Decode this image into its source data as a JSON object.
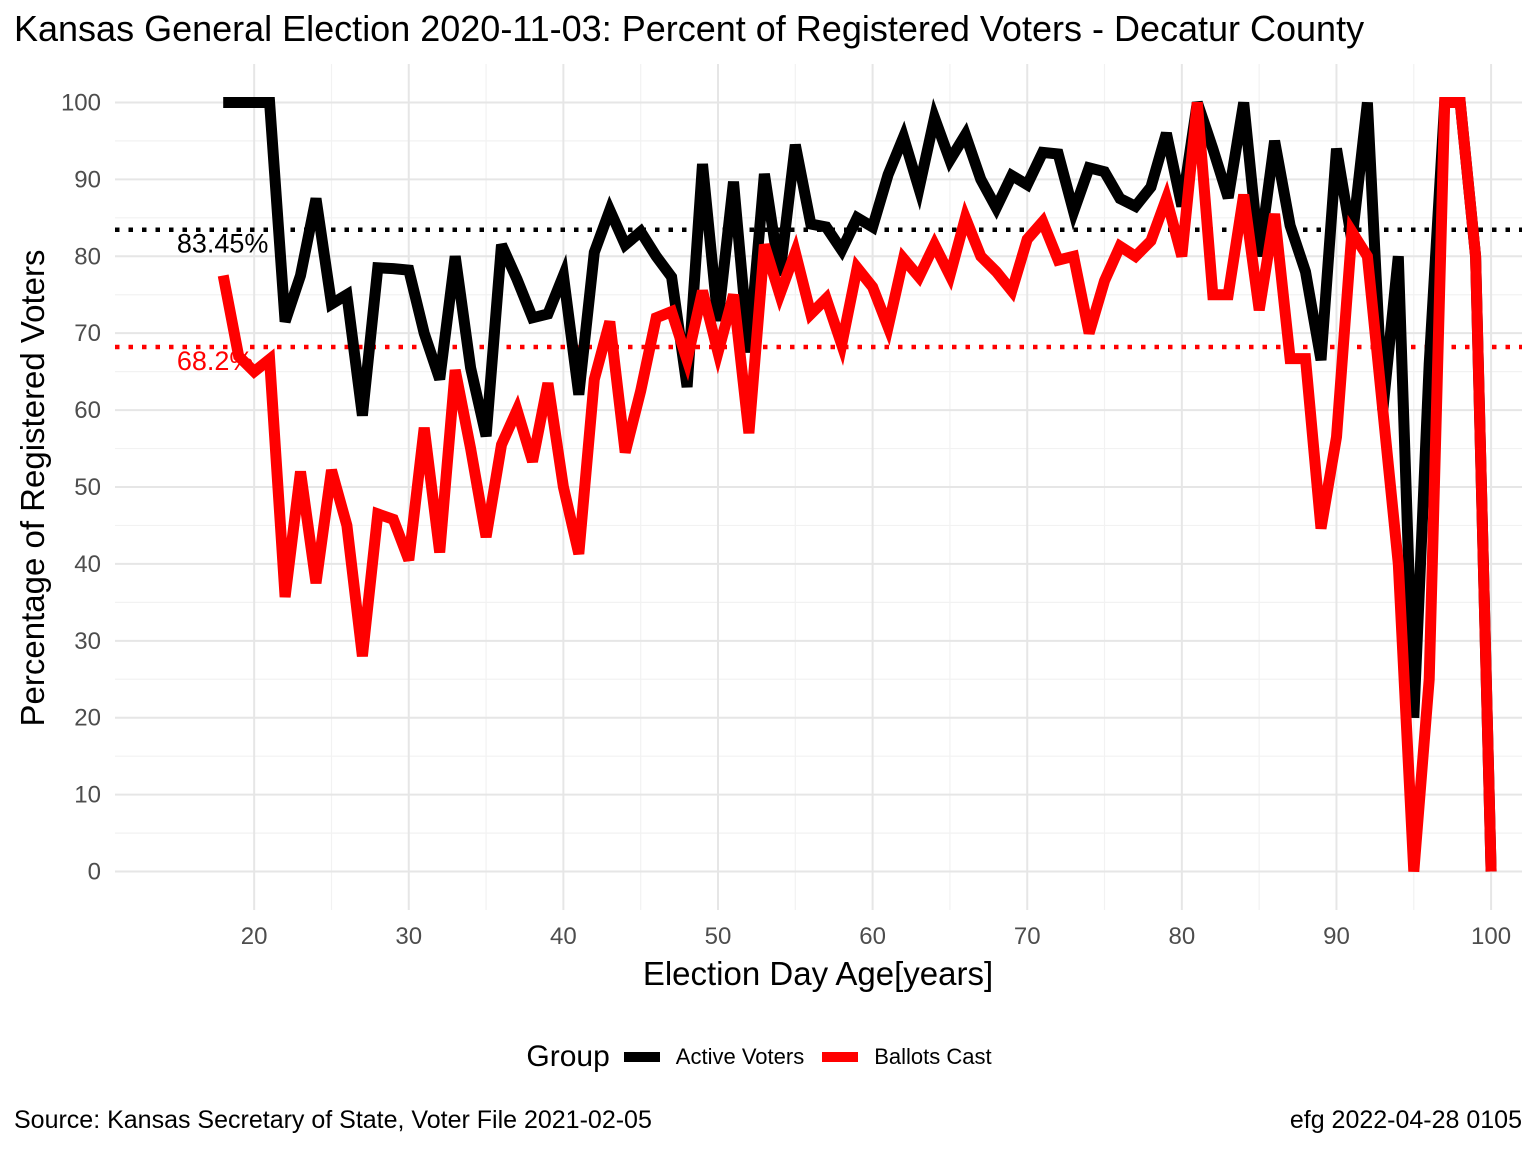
{
  "title": "Kansas General Election 2020-11-03:  Percent of Registered Voters - Decatur County",
  "caption_left": "Source:  Kansas Secretary of State, Voter File  2021-02-05",
  "caption_right": "efg 2022-04-28 0105",
  "chart_data": {
    "type": "line",
    "xlabel": "Election Day Age[years]",
    "ylabel": "Percentage of Registered Voters",
    "xlim": [
      11,
      102
    ],
    "ylim": [
      -5,
      105
    ],
    "x_ticks": [
      20,
      30,
      40,
      50,
      60,
      70,
      80,
      90,
      100
    ],
    "y_ticks": [
      0,
      10,
      20,
      30,
      40,
      50,
      60,
      70,
      80,
      90,
      100
    ],
    "grid": true,
    "legend": {
      "title": "Group",
      "position": "bottom",
      "entries": [
        "Active Voters",
        "Ballots Cast"
      ]
    },
    "reference_lines": [
      {
        "value": 83.45,
        "label": "83.45%",
        "color": "#000000"
      },
      {
        "value": 68.2,
        "label": "68.2%",
        "color": "#ff0000"
      }
    ],
    "x": [
      18,
      19,
      20,
      21,
      22,
      23,
      24,
      25,
      26,
      27,
      28,
      29,
      30,
      31,
      32,
      33,
      34,
      35,
      36,
      37,
      38,
      39,
      40,
      41,
      42,
      43,
      44,
      45,
      46,
      47,
      48,
      49,
      50,
      51,
      52,
      53,
      54,
      55,
      56,
      57,
      58,
      59,
      60,
      61,
      62,
      63,
      64,
      65,
      66,
      67,
      68,
      69,
      70,
      71,
      72,
      73,
      74,
      75,
      76,
      77,
      78,
      79,
      80,
      81,
      82,
      83,
      84,
      85,
      86,
      87,
      88,
      89,
      90,
      91,
      92,
      93,
      94,
      95,
      96,
      97,
      98,
      99,
      100
    ],
    "series": [
      {
        "name": "Active Voters",
        "color": "#000000",
        "values": [
          100,
          100,
          100,
          100,
          71.5,
          77.5,
          87.5,
          73.8,
          75,
          59.3,
          78.5,
          78.4,
          78.2,
          70,
          64,
          80,
          65.5,
          56.6,
          81.5,
          77,
          72,
          72.5,
          77.5,
          62,
          80.5,
          86,
          81.5,
          83.2,
          80,
          77.3,
          63,
          92,
          71.6,
          89.7,
          67.5,
          90.7,
          77.5,
          94.5,
          84.2,
          83.8,
          80.8,
          85,
          83.8,
          90.6,
          95.5,
          88.8,
          98,
          92.5,
          95.8,
          90,
          86.3,
          90.5,
          89.3,
          93.5,
          93.3,
          85.8,
          91.5,
          91,
          87.5,
          86.5,
          89,
          96,
          86.5,
          100,
          94,
          87.6,
          100,
          80,
          95,
          84,
          78,
          66.5,
          94,
          82,
          100,
          60,
          80,
          20,
          66,
          100,
          100,
          80,
          0
        ]
      },
      {
        "name": "Ballots Cast",
        "color": "#ff0000",
        "values": [
          77.5,
          67,
          65,
          66.6,
          35.7,
          52,
          37.5,
          52.2,
          45,
          28,
          46.5,
          45.8,
          40.5,
          57.7,
          41.5,
          65.2,
          55,
          43.5,
          55.5,
          60,
          53.3,
          63.5,
          50,
          41.3,
          64,
          71.5,
          54.5,
          62.5,
          72,
          72.8,
          66.5,
          75.5,
          67.5,
          75,
          57,
          81.5,
          75,
          80.5,
          72.5,
          74.5,
          68.5,
          78.5,
          76,
          70.8,
          79.7,
          77.3,
          81.5,
          77.5,
          85,
          80,
          78,
          75.5,
          82.2,
          84.5,
          79.5,
          80,
          70,
          76.8,
          81.3,
          80,
          82,
          87.5,
          80,
          100,
          75,
          75,
          88,
          73,
          85.5,
          66.7,
          66.7,
          44.6,
          56.5,
          83.2,
          80,
          60,
          40,
          0,
          25,
          100,
          100,
          80,
          0
        ]
      }
    ]
  }
}
